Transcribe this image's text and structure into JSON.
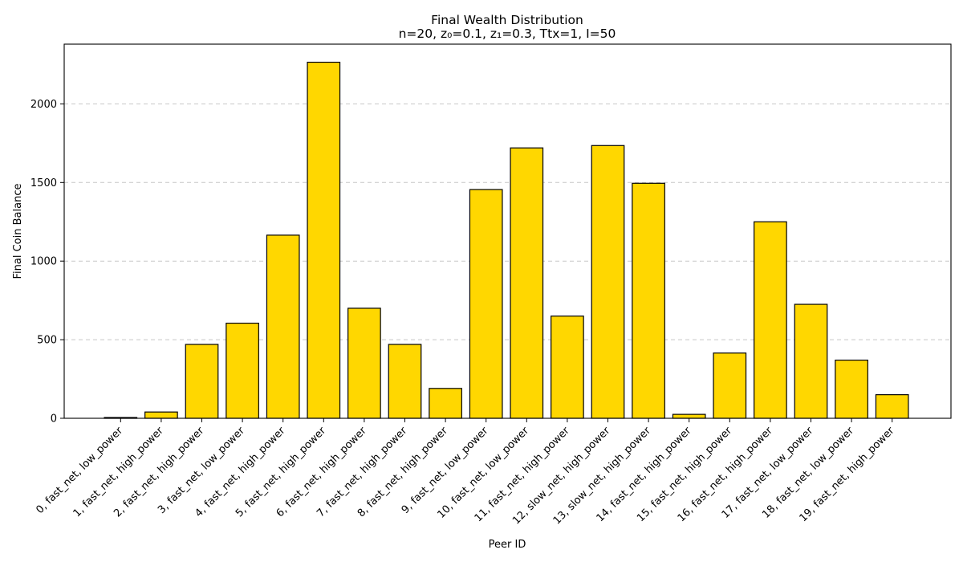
{
  "chart_data": {
    "type": "bar",
    "title": "Final Wealth Distribution",
    "subtitle": "n=20, z₀=0.1, z₁=0.3, Ttx=1, I=50",
    "xlabel": "Peer ID",
    "ylabel": "Final Coin Balance",
    "ylim": [
      0,
      2380
    ],
    "yticks": [
      0,
      500,
      1000,
      1500,
      2000
    ],
    "grid": "y-dashed",
    "bar_color": "#FFD700",
    "edge_color": "#000000",
    "categories": [
      "0, fast_net, low_power",
      "1, fast_net, high_power",
      "2, fast_net, high_power",
      "3, fast_net, low_power",
      "4, fast_net, high_power",
      "5, fast_net, high_power",
      "6, fast_net, high_power",
      "7, fast_net, high_power",
      "8, fast_net, high_power",
      "9, fast_net, low_power",
      "10, fast_net, low_power",
      "11, fast_net, high_power",
      "12, slow_net, high_power",
      "13, slow_net, high_power",
      "14, fast_net, high_power",
      "15, fast_net, high_power",
      "16, fast_net, high_power",
      "17, fast_net, low_power",
      "18, fast_net, low_power",
      "19, fast_net, high_power"
    ],
    "values": [
      5,
      40,
      470,
      605,
      1165,
      2265,
      700,
      470,
      190,
      1455,
      1720,
      650,
      1735,
      1495,
      25,
      415,
      1250,
      725,
      370,
      150
    ]
  }
}
